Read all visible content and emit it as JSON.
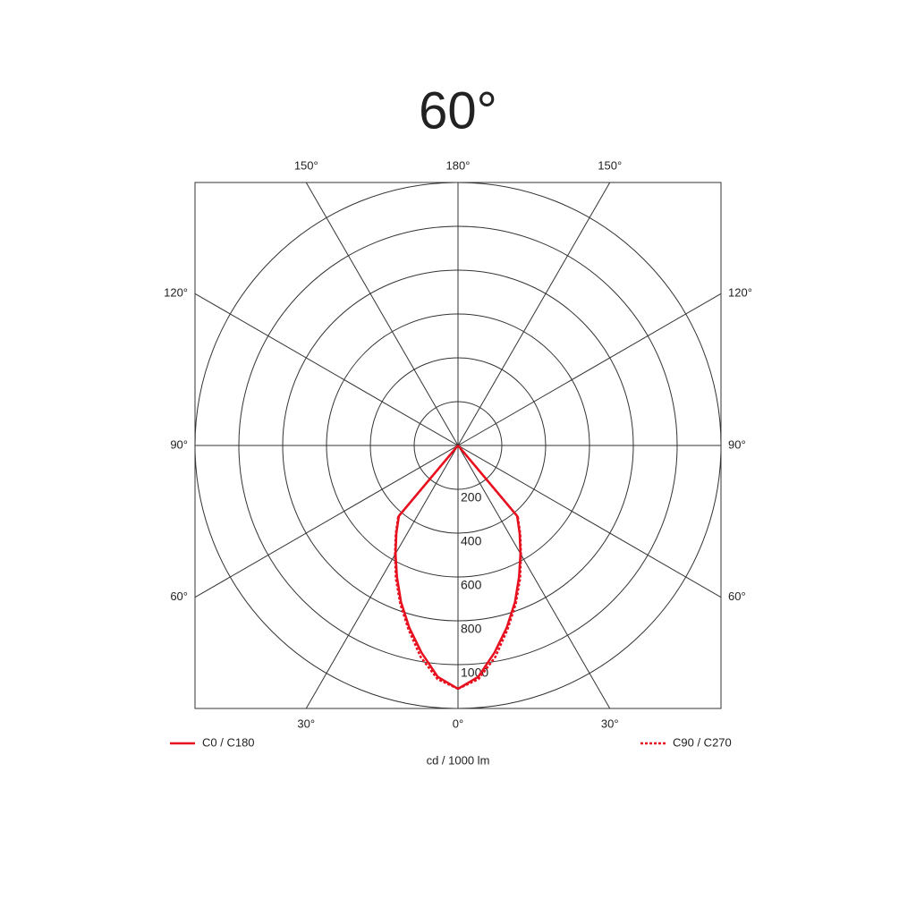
{
  "chart_data": {
    "type": "polar",
    "title": "60°",
    "rlabel": "cd / 1000 lm",
    "angles": [
      0,
      5,
      10,
      15,
      20,
      25,
      30,
      35,
      40,
      45
    ],
    "series": [
      {
        "name": "C0 / C180",
        "color": "#e8101e",
        "dash": "solid",
        "values": [
          1110,
          1060,
          960,
          860,
          760,
          660,
          570,
          490,
          420,
          0
        ]
      },
      {
        "name": "C90 / C270",
        "color": "#e8101e",
        "dash": "dotted",
        "values": [
          1110,
          1070,
          980,
          870,
          770,
          670,
          575,
          495,
          425,
          0
        ]
      }
    ],
    "rlim": [
      0,
      1200
    ],
    "rticks": [
      200,
      400,
      600,
      800,
      1000
    ],
    "angleticks": [
      {
        "value": 0,
        "label": "0°"
      },
      {
        "value": 30,
        "label": "30°"
      },
      {
        "value": 60,
        "label": "60°"
      },
      {
        "value": 90,
        "label": "90°"
      },
      {
        "value": 120,
        "label": "120°"
      },
      {
        "value": 150,
        "label": "150°"
      },
      {
        "value": 180,
        "label": "180°"
      }
    ]
  }
}
